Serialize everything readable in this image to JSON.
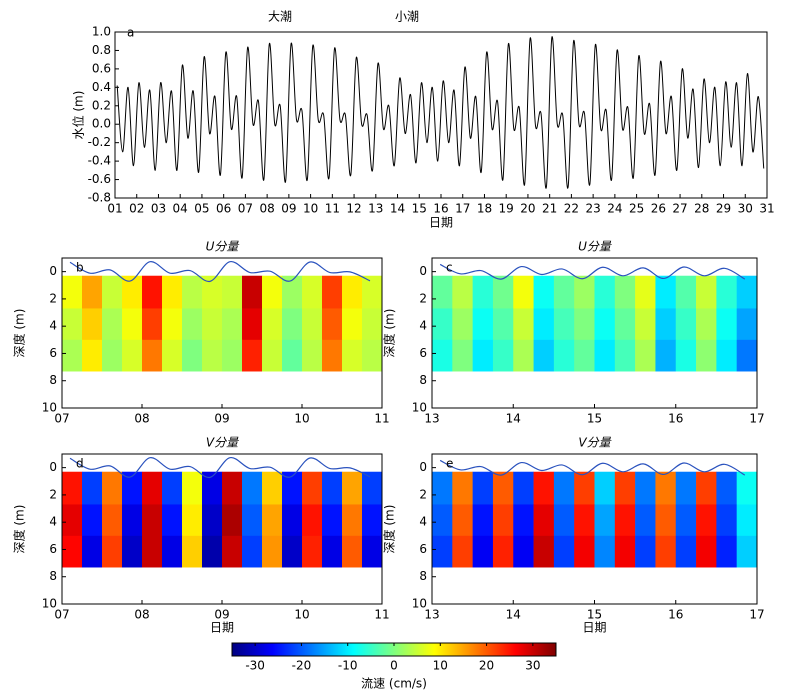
{
  "chart_data": [
    {
      "type": "line",
      "panel_label": "a",
      "annotations": [
        "大潮",
        "小潮"
      ],
      "ylabel": "水位 (m)",
      "xlabel": "日期",
      "color": "#000000",
      "xlim": [
        1,
        31
      ],
      "ylim": [
        -0.8,
        1.0
      ],
      "xticks": [
        {
          "value": 1,
          "label": "01"
        },
        {
          "value": 2,
          "label": "02"
        },
        {
          "value": 3,
          "label": "03"
        },
        {
          "value": 4,
          "label": "04"
        },
        {
          "value": 5,
          "label": "05"
        },
        {
          "value": 6,
          "label": "06"
        },
        {
          "value": 7,
          "label": "07"
        },
        {
          "value": 8,
          "label": "08"
        },
        {
          "value": 9,
          "label": "09"
        },
        10,
        11,
        12,
        13,
        14,
        15,
        16,
        17,
        18,
        19,
        20,
        21,
        22,
        23,
        24,
        25,
        26,
        27,
        28,
        29,
        30,
        31
      ],
      "yticks": [
        {
          "value": 1,
          "label": "1.0"
        },
        0.8,
        0.6,
        0.4,
        0.2,
        {
          "value": 0,
          "label": "0.0"
        },
        -0.2,
        -0.4,
        -0.6,
        -0.8
      ],
      "x": [
        1.1,
        1.35,
        1.6,
        1.85,
        2.1,
        2.35,
        2.6,
        2.85,
        3.1,
        3.35,
        3.6,
        3.85,
        4.1,
        4.35,
        4.6,
        4.85,
        5.1,
        5.35,
        5.6,
        5.85,
        6.1,
        6.35,
        6.6,
        6.85,
        7.1,
        7.35,
        7.6,
        7.85,
        8.1,
        8.35,
        8.6,
        8.85,
        9.1,
        9.35,
        9.6,
        9.85,
        10.1,
        10.35,
        10.6,
        10.85,
        11.1,
        11.35,
        11.6,
        11.85,
        12.1,
        12.35,
        12.6,
        12.85,
        13.1,
        13.35,
        13.6,
        13.85,
        14.1,
        14.35,
        14.6,
        14.85,
        15.1,
        15.35,
        15.6,
        15.85,
        16.1,
        16.35,
        16.6,
        16.85,
        17.1,
        17.35,
        17.6,
        17.85,
        18.1,
        18.35,
        18.6,
        18.85,
        19.1,
        19.35,
        19.6,
        19.85,
        20.1,
        20.35,
        20.6,
        20.85,
        21.1,
        21.35,
        21.6,
        21.85,
        22.1,
        22.35,
        22.6,
        22.85,
        23.1,
        23.35,
        23.6,
        23.85,
        24.1,
        24.35,
        24.6,
        24.85,
        25.1,
        25.35,
        25.6,
        25.85,
        26.1,
        26.35,
        26.6,
        26.85,
        27.1,
        27.35,
        27.6,
        27.85,
        28.1,
        28.35,
        28.6,
        28.85,
        29.1,
        29.35,
        29.6,
        29.85,
        30.1,
        30.35,
        30.6,
        30.85
      ],
      "values": [
        0.42,
        -0.3,
        0.4,
        -0.45,
        0.45,
        -0.25,
        0.37,
        -0.5,
        0.45,
        -0.2,
        0.36,
        -0.5,
        0.64,
        -0.15,
        0.36,
        -0.52,
        0.73,
        -0.1,
        0.3,
        -0.55,
        0.78,
        -0.05,
        0.3,
        -0.58,
        0.83,
        0,
        0.25,
        -0.6,
        0.87,
        0,
        0.2,
        -0.62,
        0.87,
        0.05,
        0.15,
        -0.6,
        0.85,
        0.05,
        0.1,
        -0.58,
        0.82,
        0.05,
        0.1,
        -0.55,
        0.72,
        0,
        0.1,
        -0.5,
        0.66,
        -0.05,
        0.2,
        -0.45,
        0.5,
        -0.1,
        0.32,
        -0.42,
        0.45,
        -0.2,
        0.4,
        -0.4,
        0.47,
        -0.2,
        0.37,
        -0.45,
        0.62,
        -0.15,
        0.3,
        -0.52,
        0.78,
        -0.05,
        0.25,
        -0.6,
        0.87,
        -0.05,
        0.18,
        -0.65,
        0.93,
        -0.02,
        0.12,
        -0.68,
        0.94,
        0,
        0.1,
        -0.68,
        0.9,
        0,
        0.12,
        -0.65,
        0.86,
        -0.05,
        0.15,
        -0.6,
        0.8,
        -0.05,
        0.18,
        -0.58,
        0.74,
        -0.1,
        0.22,
        -0.55,
        0.68,
        -0.1,
        0.3,
        -0.5,
        0.6,
        -0.15,
        0.38,
        -0.47,
        0.49,
        -0.2,
        0.4,
        -0.45,
        0.46,
        -0.25,
        0.45,
        -0.45,
        0.55,
        -0.3,
        0.3,
        -0.48
      ]
    },
    {
      "type": "heatmap",
      "title": "U分量",
      "panel_label": "b",
      "ylabel": "深度 (m)",
      "surface_color": "#2a52be",
      "xlim": [
        7,
        11
      ],
      "ylim": [
        -1,
        10
      ],
      "y_reversed": true,
      "xticks": [
        {
          "value": 7,
          "label": "07"
        },
        {
          "value": 8,
          "label": "08"
        },
        {
          "value": 9,
          "label": "09"
        },
        10,
        11
      ],
      "yticks": [
        0,
        2,
        4,
        6,
        8,
        10
      ],
      "xbins": [
        7,
        7.25,
        7.5,
        7.75,
        8,
        8.25,
        8.5,
        8.75,
        9,
        9.25,
        9.5,
        9.75,
        10,
        10.25,
        10.5,
        10.75,
        11
      ],
      "ybins": [
        0.3,
        2.7,
        5,
        7.3
      ],
      "z": [
        [
          8,
          15,
          5,
          10,
          25,
          10,
          4,
          6,
          5,
          30,
          8,
          2,
          6,
          22,
          10,
          6
        ],
        [
          5,
          12,
          3,
          8,
          22,
          8,
          2,
          5,
          3,
          28,
          6,
          0,
          5,
          20,
          8,
          5
        ],
        [
          3,
          10,
          2,
          6,
          18,
          6,
          0,
          4,
          2,
          24,
          5,
          -2,
          4,
          18,
          6,
          4
        ]
      ]
    },
    {
      "type": "heatmap",
      "title": "U分量",
      "panel_label": "c",
      "ylabel": "深度 (m)",
      "surface_color": "#2a52be",
      "xlim": [
        13,
        17
      ],
      "ylim": [
        -1,
        10
      ],
      "y_reversed": true,
      "xticks": [
        13,
        14,
        15,
        16,
        17
      ],
      "yticks": [
        0,
        2,
        4,
        6,
        8,
        10
      ],
      "xbins": [
        13,
        13.25,
        13.5,
        13.75,
        14,
        14.25,
        14.5,
        14.75,
        15,
        15.25,
        15.5,
        15.75,
        16,
        16.25,
        16.5,
        16.75,
        17
      ],
      "ybins": [
        0.3,
        2.7,
        5,
        7.3
      ],
      "z": [
        [
          -2,
          4,
          -6,
          -1,
          8,
          -8,
          -2,
          2,
          -6,
          0,
          7,
          -10,
          -3,
          5,
          -6,
          -12
        ],
        [
          -5,
          2,
          -8,
          -3,
          5,
          -10,
          -4,
          0,
          -8,
          -2,
          5,
          -12,
          -5,
          3,
          -8,
          -15
        ],
        [
          -7,
          0,
          -10,
          -5,
          3,
          -12,
          -6,
          -2,
          -10,
          -4,
          3,
          -14,
          -7,
          1,
          -10,
          -18
        ]
      ]
    },
    {
      "type": "heatmap",
      "title": "V分量",
      "panel_label": "d",
      "ylabel": "深度 (m)",
      "xlabel": "日期",
      "surface_color": "#2a52be",
      "xlim": [
        7,
        11
      ],
      "ylim": [
        -1,
        10
      ],
      "y_reversed": true,
      "xticks": [
        {
          "value": 7,
          "label": "07"
        },
        {
          "value": 8,
          "label": "08"
        },
        {
          "value": 9,
          "label": "09"
        },
        10,
        11
      ],
      "yticks": [
        0,
        2,
        4,
        6,
        8,
        10
      ],
      "xbins": [
        7,
        7.25,
        7.5,
        7.75,
        8,
        8.25,
        8.5,
        8.75,
        9,
        9.25,
        9.5,
        9.75,
        10,
        10.25,
        10.5,
        10.75,
        11
      ],
      "ybins": [
        0.3,
        2.7,
        5,
        7.3
      ],
      "z": [
        [
          25,
          -22,
          18,
          -25,
          28,
          -22,
          8,
          -28,
          30,
          -18,
          12,
          -25,
          22,
          -22,
          15,
          -22
        ],
        [
          28,
          -25,
          20,
          -28,
          30,
          -25,
          10,
          -30,
          32,
          -20,
          15,
          -28,
          25,
          -25,
          18,
          -25
        ],
        [
          26,
          -28,
          22,
          -30,
          30,
          -28,
          12,
          -32,
          30,
          -22,
          16,
          -30,
          24,
          -28,
          20,
          -28
        ]
      ]
    },
    {
      "type": "heatmap",
      "title": "V分量",
      "panel_label": "e",
      "ylabel": "深度 (m)",
      "xlabel": "日期",
      "surface_color": "#2a52be",
      "xlim": [
        13,
        17
      ],
      "ylim": [
        -1,
        10
      ],
      "y_reversed": true,
      "xticks": [
        13,
        14,
        15,
        16,
        17
      ],
      "yticks": [
        0,
        2,
        4,
        6,
        8,
        10
      ],
      "xbins": [
        13,
        13.25,
        13.5,
        13.75,
        14,
        14.25,
        14.5,
        14.75,
        15,
        15.25,
        15.5,
        15.75,
        16,
        16.25,
        16.5,
        16.75,
        17
      ],
      "ybins": [
        0.3,
        2.7,
        5,
        7.3
      ],
      "z": [
        [
          -18,
          18,
          -22,
          20,
          -22,
          25,
          -18,
          22,
          -12,
          22,
          -18,
          18,
          -18,
          22,
          -20,
          -8
        ],
        [
          -20,
          20,
          -25,
          22,
          -25,
          28,
          -20,
          25,
          -15,
          25,
          -20,
          20,
          -20,
          25,
          -22,
          -10
        ],
        [
          -22,
          22,
          -27,
          24,
          -27,
          30,
          -22,
          27,
          -17,
          27,
          -22,
          22,
          -22,
          27,
          -24,
          -12
        ]
      ]
    },
    {
      "type": "colorbar",
      "label": "流速 (cm/s)",
      "clim": [
        -35,
        35
      ],
      "xticks": [
        -30,
        -20,
        -10,
        0,
        10,
        20,
        30
      ],
      "colors": [
        "#00007f",
        "#0000ff",
        "#007fff",
        "#00ffff",
        "#7fff7f",
        "#ffff00",
        "#ff7f00",
        "#ff0000",
        "#7f0000"
      ]
    }
  ]
}
